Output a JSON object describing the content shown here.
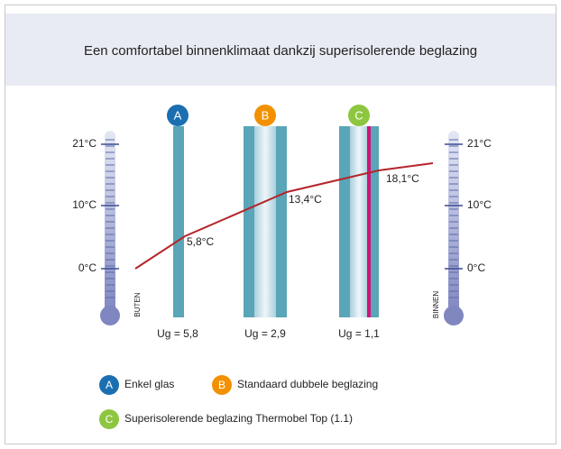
{
  "header": {
    "title": "Een comfortabel binnenklimaat dankzij superisolerende beglazing"
  },
  "scale": {
    "labels": [
      "21°C",
      "10°C",
      "0°C"
    ]
  },
  "sides": {
    "outside": "BUTEN",
    "inside": "BINNEN"
  },
  "glazing": [
    {
      "badge": "A",
      "ug": "Ug = 5,8",
      "temperature": "5,8°C"
    },
    {
      "badge": "B",
      "ug": "Ug = 2,9",
      "temperature": "13,4°C"
    },
    {
      "badge": "C",
      "ug": "Ug = 1,1",
      "temperature": "18,1°C"
    }
  ],
  "legend": [
    {
      "badge": "A",
      "label": "Enkel glas"
    },
    {
      "badge": "B",
      "label": "Standaard dubbele beglazing"
    },
    {
      "badge": "C",
      "label": "Superisolerende beglazing Thermobel Top (1.1)"
    }
  ]
}
